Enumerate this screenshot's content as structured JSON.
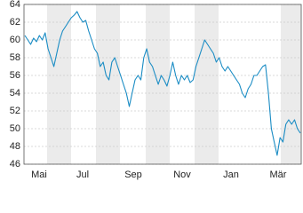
{
  "chart_data": {
    "type": "line",
    "xtick_labels": [
      "Mai",
      "Jul",
      "Sep",
      "Nov",
      "Jan",
      "Mär"
    ],
    "series": [
      {
        "color": "#1a8cc4",
        "values": [
          60.5,
          60,
          59.5,
          60.2,
          59.8,
          60.5,
          60,
          60.8,
          59,
          58,
          57,
          58.5,
          60,
          61,
          61.5,
          62,
          62.5,
          62.8,
          63.2,
          62.5,
          62,
          62.2,
          61,
          60,
          59,
          58.5,
          57,
          57.5,
          56,
          55.5,
          57.5,
          58,
          57,
          56,
          55,
          54,
          52.5,
          54,
          55.5,
          56,
          55.5,
          58,
          59,
          57.5,
          57,
          56,
          55,
          56,
          55.5,
          54.8,
          56,
          57.5,
          56,
          55,
          56,
          55.5,
          56,
          55.2,
          55.5,
          57,
          58,
          59,
          60,
          59.5,
          59,
          58.5,
          57.5,
          58,
          57,
          56.5,
          57,
          56.5,
          56,
          55.5,
          55,
          54,
          53.5,
          54.5,
          55,
          56,
          56,
          56.5,
          57,
          57.2,
          54,
          50,
          48.5,
          47,
          49,
          48.5,
          50.5,
          51,
          50.5,
          51,
          50,
          49.5
        ]
      }
    ],
    "ylim": [
      46,
      64
    ],
    "yticks": [
      46,
      48,
      50,
      52,
      54,
      56,
      58,
      60,
      62,
      64
    ],
    "grid": true
  }
}
